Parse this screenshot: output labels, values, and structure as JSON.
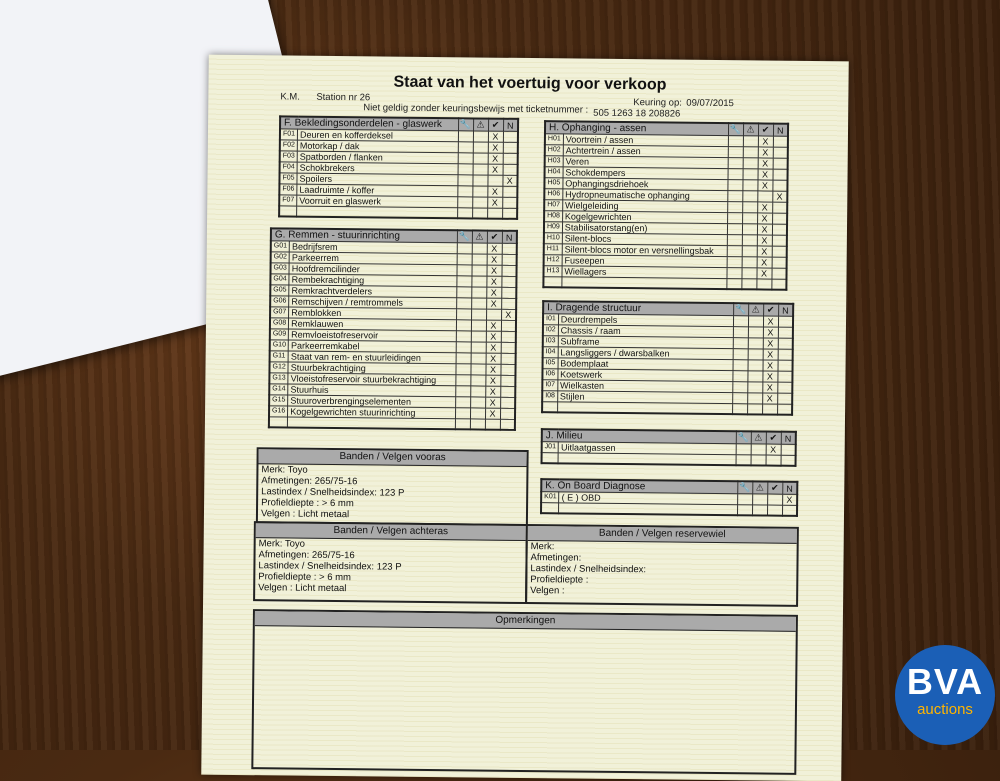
{
  "header": {
    "title": "Staat van het voertuig voor verkoop",
    "km": "K.M.",
    "station": "Station nr 26",
    "keuring_label": "Keuring op:",
    "keuring_date": "09/07/2015",
    "niet_geldig": "Niet geldig  zonder keuringsbewijs met ticketnummer :",
    "ticket": "505 1263 18 208826"
  },
  "column_icons": [
    "wrench-icon",
    "warning-icon",
    "car-ok-icon",
    "N"
  ],
  "column_glyphs": [
    "🔧",
    "⚠",
    "✔",
    "N"
  ],
  "sections": [
    {
      "id": "F",
      "title": "F. Bekledingsonderdelen - glaswerk",
      "rows": [
        [
          "F01",
          "Deuren en kofferdeksel",
          2
        ],
        [
          "F02",
          "Motorkap / dak",
          2
        ],
        [
          "F03",
          "Spatborden / flanken",
          2
        ],
        [
          "F04",
          "Schokbrekers",
          2
        ],
        [
          "F05",
          "Spoilers",
          3
        ],
        [
          "F06",
          "Laadruimte / koffer",
          2
        ],
        [
          "F07",
          "Voorruit en glaswerk",
          2
        ]
      ]
    },
    {
      "id": "G",
      "title": "G. Remmen - stuurinrichting",
      "rows": [
        [
          "G01",
          "Bedrijfsrem",
          2
        ],
        [
          "G02",
          "Parkeerrem",
          2
        ],
        [
          "G03",
          "Hoofdremcilinder",
          2
        ],
        [
          "G04",
          "Rembekrachtiging",
          2
        ],
        [
          "G05",
          "Remkrachtverdelers",
          2
        ],
        [
          "G06",
          "Remschijven / remtrommels",
          2
        ],
        [
          "G07",
          "Remblokken",
          3
        ],
        [
          "G08",
          "Remklauwen",
          2
        ],
        [
          "G09",
          "Remvloeistofreservoir",
          2
        ],
        [
          "G10",
          "Parkeerremkabel",
          2
        ],
        [
          "G11",
          "Staat van rem- en stuurleidingen",
          2
        ],
        [
          "G12",
          "Stuurbekrachtiging",
          2
        ],
        [
          "G13",
          "Vloeistofreservoir stuurbekrachtiging",
          2
        ],
        [
          "G14",
          "Stuurhuis",
          2
        ],
        [
          "G15",
          "Stuuroverbrengingselementen",
          2
        ],
        [
          "G16",
          "Kogelgewrichten stuurinrichting",
          2
        ]
      ]
    },
    {
      "id": "H",
      "title": "H. Ophanging - assen",
      "rows": [
        [
          "H01",
          "Voortrein / assen",
          2
        ],
        [
          "H02",
          "Achtertrein / assen",
          2
        ],
        [
          "H03",
          "Veren",
          2
        ],
        [
          "H04",
          "Schokdempers",
          2
        ],
        [
          "H05",
          "Ophangingsdriehoek",
          2
        ],
        [
          "H06",
          "Hydropneumatische ophanging",
          3
        ],
        [
          "H07",
          "Wielgeleiding",
          2
        ],
        [
          "H08",
          "Kogelgewrichten",
          2
        ],
        [
          "H09",
          "Stabilisatorstang(en)",
          2
        ],
        [
          "H10",
          "Silent-blocs",
          2
        ],
        [
          "H11",
          "Silent-blocs motor en versnellingsbak",
          2
        ],
        [
          "H12",
          "Fuseepen",
          2
        ],
        [
          "H13",
          "Wiellagers",
          2
        ]
      ]
    },
    {
      "id": "I",
      "title": "I. Dragende structuur",
      "rows": [
        [
          "I01",
          "Deurdrempels",
          2
        ],
        [
          "I02",
          "Chassis / raam",
          2
        ],
        [
          "I03",
          "Subframe",
          2
        ],
        [
          "I04",
          "Langsliggers / dwarsbalken",
          2
        ],
        [
          "I05",
          "Bodemplaat",
          2
        ],
        [
          "I06",
          "Koetswerk",
          2
        ],
        [
          "I07",
          "Wielkasten",
          2
        ],
        [
          "I08",
          "Stijlen",
          2
        ]
      ]
    },
    {
      "id": "J",
      "title": "J. Milieu",
      "rows": [
        [
          "J01",
          "Uitlaatgassen",
          2
        ]
      ]
    },
    {
      "id": "K",
      "title": "K. On Board Diagnose",
      "rows": [
        [
          "K01",
          "( E ) OBD",
          3
        ]
      ]
    }
  ],
  "mark": "X",
  "tyres": [
    {
      "title": "Banden / Velgen vooras",
      "lines": [
        "Merk:  Toyo",
        "Afmetingen:  265/75-16",
        "Lastindex / Snelheidsindex:  123   P",
        "Profieldiepte :  > 6 mm",
        "Velgen :  Licht metaal"
      ]
    },
    {
      "title": "Banden / Velgen achteras",
      "lines": [
        "Merk:  Toyo",
        "Afmetingen:  265/75-16",
        "Lastindex / Snelheidsindex:  123   P",
        "Profieldiepte :  > 6 mm",
        "Velgen :  Licht metaal"
      ]
    },
    {
      "title": "Banden / Velgen reservewiel",
      "lines": [
        "Merk:",
        "Afmetingen:",
        "Lastindex / Snelheidsindex:",
        "Profieldiepte :",
        "Velgen :"
      ]
    }
  ],
  "remarks": {
    "title": "Opmerkingen"
  },
  "logo": {
    "name": "BVA",
    "sub": "auctions",
    "color": "#1b5fb6"
  }
}
